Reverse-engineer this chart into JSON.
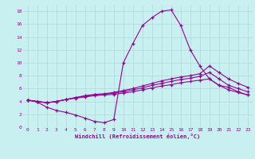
{
  "xlabel": "Windchill (Refroidissement éolien,°C)",
  "bg_color": "#c8f0f0",
  "grid_color": "#b0d8d8",
  "line_color": "#990099",
  "marker": "+",
  "xlim": [
    -0.5,
    23.5
  ],
  "ylim": [
    0,
    19
  ],
  "xticks": [
    0,
    1,
    2,
    3,
    4,
    5,
    6,
    7,
    8,
    9,
    10,
    11,
    12,
    13,
    14,
    15,
    16,
    17,
    18,
    19,
    20,
    21,
    22,
    23
  ],
  "yticks": [
    0,
    2,
    4,
    6,
    8,
    10,
    12,
    14,
    16,
    18
  ],
  "series": [
    [
      4.2,
      3.9,
      3.1,
      2.6,
      2.3,
      1.9,
      1.4,
      0.9,
      0.7,
      1.2,
      10.0,
      13.0,
      15.8,
      17.0,
      18.0,
      18.2,
      15.8,
      12.0,
      9.5,
      7.5,
      6.5,
      6.2,
      5.5,
      5.0
    ],
    [
      4.2,
      4.0,
      3.8,
      4.0,
      4.3,
      4.6,
      4.9,
      5.1,
      5.2,
      5.4,
      5.7,
      6.0,
      6.4,
      6.8,
      7.2,
      7.5,
      7.8,
      8.0,
      8.3,
      9.5,
      8.5,
      7.5,
      6.8,
      6.2
    ],
    [
      4.2,
      4.0,
      3.8,
      4.0,
      4.3,
      4.6,
      4.8,
      5.0,
      5.1,
      5.3,
      5.5,
      5.8,
      6.1,
      6.5,
      6.8,
      7.1,
      7.4,
      7.6,
      7.9,
      8.5,
      7.5,
      6.5,
      6.0,
      5.5
    ],
    [
      4.2,
      4.0,
      3.8,
      4.0,
      4.3,
      4.5,
      4.7,
      4.9,
      5.0,
      5.1,
      5.3,
      5.5,
      5.8,
      6.1,
      6.4,
      6.6,
      6.9,
      7.1,
      7.3,
      7.5,
      6.5,
      5.8,
      5.4,
      5.0
    ]
  ]
}
